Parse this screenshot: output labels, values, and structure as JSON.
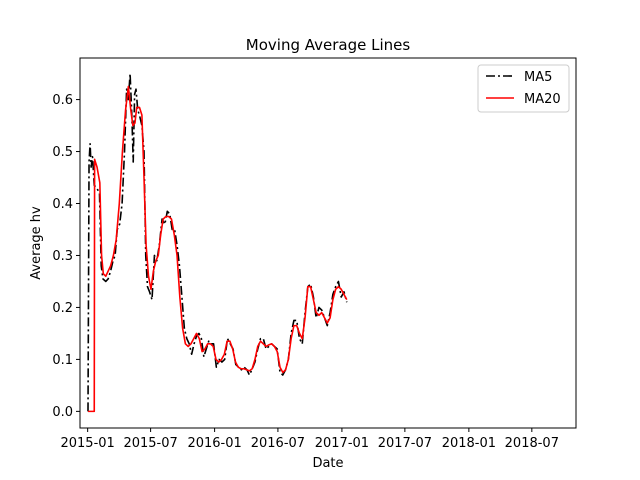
{
  "chart_data": {
    "type": "line",
    "title": "Moving Average Lines",
    "xlabel": "Date",
    "ylabel": "Average hv",
    "x_ticks": [
      "2015-01",
      "2015-07",
      "2016-01",
      "2016-07",
      "2017-01",
      "2017-07",
      "2018-01",
      "2018-07"
    ],
    "y_ticks": [
      "0.0",
      "0.1",
      "0.2",
      "0.3",
      "0.4",
      "0.5",
      "0.6"
    ],
    "xlim": [
      "2014-12-10",
      "2018-11-05"
    ],
    "ylim": [
      -0.032,
      0.68
    ],
    "grid": false,
    "legend_position": "upper right",
    "series": [
      {
        "name": "MA5",
        "color": "#000000",
        "style": "dashdot",
        "points": [
          [
            "2015-01-02",
            0.0
          ],
          [
            "2015-01-05",
            0.48
          ],
          [
            "2015-01-08",
            0.515
          ],
          [
            "2015-01-11",
            0.47
          ],
          [
            "2015-01-15",
            0.49
          ],
          [
            "2015-01-20",
            0.435
          ],
          [
            "2015-01-27",
            0.43
          ],
          [
            "2015-02-04",
            0.42
          ],
          [
            "2015-02-09",
            0.28
          ],
          [
            "2015-02-14",
            0.255
          ],
          [
            "2015-02-22",
            0.25
          ],
          [
            "2015-03-01",
            0.255
          ],
          [
            "2015-03-08",
            0.27
          ],
          [
            "2015-03-15",
            0.29
          ],
          [
            "2015-03-21",
            0.3
          ],
          [
            "2015-03-27",
            0.35
          ],
          [
            "2015-04-03",
            0.36
          ],
          [
            "2015-04-10",
            0.4
          ],
          [
            "2015-04-17",
            0.5
          ],
          [
            "2015-04-23",
            0.62
          ],
          [
            "2015-04-28",
            0.6
          ],
          [
            "2015-05-03",
            0.65
          ],
          [
            "2015-05-08",
            0.57
          ],
          [
            "2015-05-12",
            0.48
          ],
          [
            "2015-05-16",
            0.61
          ],
          [
            "2015-05-20",
            0.62
          ],
          [
            "2015-05-25",
            0.58
          ],
          [
            "2015-05-30",
            0.57
          ],
          [
            "2015-06-06",
            0.55
          ],
          [
            "2015-06-12",
            0.5
          ],
          [
            "2015-06-17",
            0.3
          ],
          [
            "2015-06-22",
            0.24
          ],
          [
            "2015-06-28",
            0.23
          ],
          [
            "2015-07-05",
            0.215
          ],
          [
            "2015-07-12",
            0.3
          ],
          [
            "2015-07-19",
            0.29
          ],
          [
            "2015-07-26",
            0.32
          ],
          [
            "2015-08-03",
            0.37
          ],
          [
            "2015-08-11",
            0.36
          ],
          [
            "2015-08-18",
            0.385
          ],
          [
            "2015-08-25",
            0.38
          ],
          [
            "2015-09-01",
            0.35
          ],
          [
            "2015-09-08",
            0.35
          ],
          [
            "2015-09-15",
            0.32
          ],
          [
            "2015-09-22",
            0.28
          ],
          [
            "2015-09-29",
            0.22
          ],
          [
            "2015-10-06",
            0.16
          ],
          [
            "2015-10-13",
            0.14
          ],
          [
            "2015-10-20",
            0.13
          ],
          [
            "2015-10-27",
            0.11
          ],
          [
            "2015-11-03",
            0.13
          ],
          [
            "2015-11-10",
            0.145
          ],
          [
            "2015-11-17",
            0.15
          ],
          [
            "2015-11-24",
            0.14
          ],
          [
            "2015-12-01",
            0.105
          ],
          [
            "2015-12-08",
            0.12
          ],
          [
            "2015-12-15",
            0.135
          ],
          [
            "2015-12-22",
            0.13
          ],
          [
            "2015-12-29",
            0.13
          ],
          [
            "2016-01-06",
            0.085
          ],
          [
            "2016-01-14",
            0.1
          ],
          [
            "2016-01-22",
            0.095
          ],
          [
            "2016-01-30",
            0.1
          ],
          [
            "2016-02-07",
            0.14
          ],
          [
            "2016-02-15",
            0.13
          ],
          [
            "2016-02-23",
            0.12
          ],
          [
            "2016-03-02",
            0.09
          ],
          [
            "2016-03-10",
            0.085
          ],
          [
            "2016-03-18",
            0.08
          ],
          [
            "2016-03-26",
            0.085
          ],
          [
            "2016-04-03",
            0.08
          ],
          [
            "2016-04-10",
            0.07
          ],
          [
            "2016-04-17",
            0.08
          ],
          [
            "2016-04-26",
            0.095
          ],
          [
            "2016-05-04",
            0.12
          ],
          [
            "2016-05-12",
            0.14
          ],
          [
            "2016-05-20",
            0.14
          ],
          [
            "2016-05-28",
            0.12
          ],
          [
            "2016-06-05",
            0.125
          ],
          [
            "2016-06-13",
            0.13
          ],
          [
            "2016-06-21",
            0.125
          ],
          [
            "2016-06-29",
            0.12
          ],
          [
            "2016-07-07",
            0.075
          ],
          [
            "2016-07-15",
            0.07
          ],
          [
            "2016-07-23",
            0.08
          ],
          [
            "2016-07-31",
            0.1
          ],
          [
            "2016-08-08",
            0.15
          ],
          [
            "2016-08-16",
            0.175
          ],
          [
            "2016-08-24",
            0.175
          ],
          [
            "2016-09-01",
            0.14
          ],
          [
            "2016-09-09",
            0.13
          ],
          [
            "2016-09-17",
            0.19
          ],
          [
            "2016-09-25",
            0.24
          ],
          [
            "2016-10-03",
            0.245
          ],
          [
            "2016-10-11",
            0.22
          ],
          [
            "2016-10-19",
            0.18
          ],
          [
            "2016-10-27",
            0.2
          ],
          [
            "2016-11-04",
            0.195
          ],
          [
            "2016-11-12",
            0.18
          ],
          [
            "2016-11-20",
            0.165
          ],
          [
            "2016-11-28",
            0.19
          ],
          [
            "2016-12-06",
            0.225
          ],
          [
            "2016-12-14",
            0.24
          ],
          [
            "2016-12-22",
            0.25
          ],
          [
            "2016-12-30",
            0.22
          ],
          [
            "2017-01-07",
            0.23
          ],
          [
            "2017-01-15",
            0.21
          ]
        ]
      },
      {
        "name": "MA20",
        "color": "#ff0000",
        "style": "solid",
        "points": [
          [
            "2015-01-02",
            0.0
          ],
          [
            "2015-01-20",
            0.0
          ],
          [
            "2015-01-21",
            0.485
          ],
          [
            "2015-01-28",
            0.47
          ],
          [
            "2015-02-05",
            0.44
          ],
          [
            "2015-02-10",
            0.3
          ],
          [
            "2015-02-15",
            0.265
          ],
          [
            "2015-02-22",
            0.26
          ],
          [
            "2015-03-01",
            0.27
          ],
          [
            "2015-03-08",
            0.28
          ],
          [
            "2015-03-16",
            0.3
          ],
          [
            "2015-03-24",
            0.33
          ],
          [
            "2015-04-02",
            0.4
          ],
          [
            "2015-04-11",
            0.5
          ],
          [
            "2015-04-20",
            0.58
          ],
          [
            "2015-04-28",
            0.625
          ],
          [
            "2015-05-05",
            0.58
          ],
          [
            "2015-05-11",
            0.55
          ],
          [
            "2015-05-17",
            0.555
          ],
          [
            "2015-05-22",
            0.585
          ],
          [
            "2015-05-30",
            0.585
          ],
          [
            "2015-06-06",
            0.57
          ],
          [
            "2015-06-12",
            0.45
          ],
          [
            "2015-06-18",
            0.32
          ],
          [
            "2015-06-25",
            0.26
          ],
          [
            "2015-07-02",
            0.235
          ],
          [
            "2015-07-09",
            0.27
          ],
          [
            "2015-07-16",
            0.29
          ],
          [
            "2015-07-23",
            0.3
          ],
          [
            "2015-07-30",
            0.34
          ],
          [
            "2015-08-06",
            0.37
          ],
          [
            "2015-08-14",
            0.375
          ],
          [
            "2015-08-22",
            0.375
          ],
          [
            "2015-08-30",
            0.37
          ],
          [
            "2015-09-07",
            0.34
          ],
          [
            "2015-09-15",
            0.3
          ],
          [
            "2015-09-23",
            0.22
          ],
          [
            "2015-10-01",
            0.16
          ],
          [
            "2015-10-09",
            0.13
          ],
          [
            "2015-10-17",
            0.125
          ],
          [
            "2015-10-25",
            0.13
          ],
          [
            "2015-11-02",
            0.14
          ],
          [
            "2015-11-10",
            0.15
          ],
          [
            "2015-11-18",
            0.14
          ],
          [
            "2015-11-26",
            0.115
          ],
          [
            "2015-12-04",
            0.12
          ],
          [
            "2015-12-12",
            0.13
          ],
          [
            "2015-12-20",
            0.13
          ],
          [
            "2015-12-28",
            0.125
          ],
          [
            "2016-01-05",
            0.1
          ],
          [
            "2016-01-13",
            0.095
          ],
          [
            "2016-01-21",
            0.1
          ],
          [
            "2016-01-29",
            0.11
          ],
          [
            "2016-02-06",
            0.135
          ],
          [
            "2016-02-14",
            0.135
          ],
          [
            "2016-02-22",
            0.12
          ],
          [
            "2016-03-01",
            0.095
          ],
          [
            "2016-03-09",
            0.085
          ],
          [
            "2016-03-17",
            0.082
          ],
          [
            "2016-03-25",
            0.082
          ],
          [
            "2016-04-02",
            0.08
          ],
          [
            "2016-04-10",
            0.078
          ],
          [
            "2016-04-18",
            0.082
          ],
          [
            "2016-04-26",
            0.1
          ],
          [
            "2016-05-04",
            0.125
          ],
          [
            "2016-05-12",
            0.135
          ],
          [
            "2016-05-20",
            0.13
          ],
          [
            "2016-05-28",
            0.125
          ],
          [
            "2016-06-05",
            0.128
          ],
          [
            "2016-06-13",
            0.13
          ],
          [
            "2016-06-21",
            0.125
          ],
          [
            "2016-06-29",
            0.115
          ],
          [
            "2016-07-07",
            0.085
          ],
          [
            "2016-07-15",
            0.075
          ],
          [
            "2016-07-23",
            0.08
          ],
          [
            "2016-07-31",
            0.1
          ],
          [
            "2016-08-08",
            0.14
          ],
          [
            "2016-08-16",
            0.165
          ],
          [
            "2016-08-24",
            0.165
          ],
          [
            "2016-09-01",
            0.15
          ],
          [
            "2016-09-09",
            0.14
          ],
          [
            "2016-09-17",
            0.18
          ],
          [
            "2016-09-25",
            0.24
          ],
          [
            "2016-10-03",
            0.24
          ],
          [
            "2016-10-11",
            0.215
          ],
          [
            "2016-10-19",
            0.19
          ],
          [
            "2016-10-27",
            0.185
          ],
          [
            "2016-11-04",
            0.19
          ],
          [
            "2016-11-12",
            0.18
          ],
          [
            "2016-11-20",
            0.17
          ],
          [
            "2016-11-28",
            0.18
          ],
          [
            "2016-12-06",
            0.215
          ],
          [
            "2016-12-14",
            0.235
          ],
          [
            "2016-12-22",
            0.24
          ],
          [
            "2016-12-30",
            0.235
          ],
          [
            "2017-01-07",
            0.225
          ],
          [
            "2017-01-15",
            0.215
          ]
        ]
      }
    ]
  }
}
